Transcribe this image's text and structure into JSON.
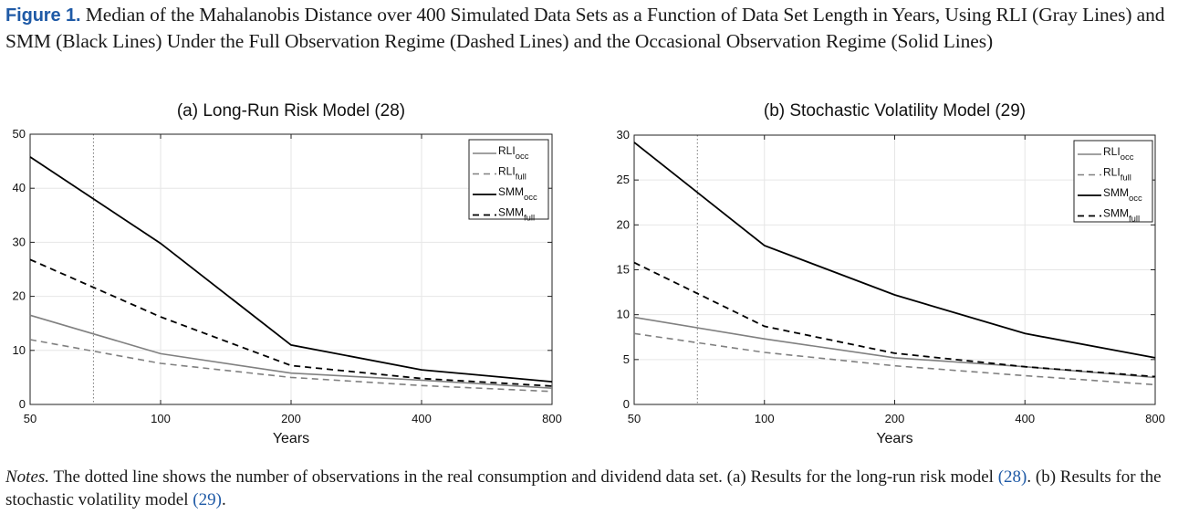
{
  "caption": {
    "label": "Figure 1.",
    "text": "Median of the Mahalanobis Distance over 400 Simulated Data Sets as a Function of Data Set Length in Years, Using RLI (Gray Lines) and SMM (Black Lines) Under the Full Observation Regime (Dashed Lines) and the Occasional Observation Regime (Solid Lines)"
  },
  "notes": {
    "label": "Notes.",
    "text1": " The dotted line shows the number of observations in the real consumption and dividend data set. (a) Results for the long-run risk model ",
    "ref_a": "(28)",
    "text2": ". (b) Results for the stochastic volatility model ",
    "ref_b": "(29)",
    "text3": "."
  },
  "chart_data": [
    {
      "type": "line",
      "title": "(a) Long-Run Risk Model (28)",
      "xlabel": "Years",
      "ylabel": "",
      "x_scale": "log",
      "x": [
        50,
        100,
        200,
        400,
        800
      ],
      "x_ticks": [
        "50",
        "100",
        "200",
        "400",
        "800"
      ],
      "xlim": [
        50,
        800
      ],
      "ylim": [
        0,
        50
      ],
      "y_ticks": [
        0,
        10,
        20,
        30,
        40,
        50
      ],
      "grid": true,
      "legend": "top-right",
      "reference_line_x": 70,
      "series": [
        {
          "name": "RLI",
          "sub": "occ",
          "color": "#808080",
          "dash": "solid",
          "values": [
            16.5,
            9.4,
            5.8,
            4.5,
            3.0
          ]
        },
        {
          "name": "RLI",
          "sub": "full",
          "color": "#808080",
          "dash": "dashed",
          "values": [
            12.0,
            7.6,
            5.0,
            3.5,
            2.4
          ]
        },
        {
          "name": "SMM",
          "sub": "occ",
          "color": "#000000",
          "dash": "solid",
          "values": [
            45.8,
            29.8,
            11.0,
            6.4,
            4.2
          ]
        },
        {
          "name": "SMM",
          "sub": "full",
          "color": "#000000",
          "dash": "dashed",
          "values": [
            26.8,
            16.2,
            7.2,
            4.8,
            3.4
          ]
        }
      ]
    },
    {
      "type": "line",
      "title": "(b) Stochastic Volatility Model (29)",
      "xlabel": "Years",
      "ylabel": "",
      "x_scale": "log",
      "x": [
        50,
        100,
        200,
        400,
        800
      ],
      "x_ticks": [
        "50",
        "100",
        "200",
        "400",
        "800"
      ],
      "xlim": [
        50,
        800
      ],
      "ylim": [
        0,
        30
      ],
      "y_ticks": [
        0,
        5,
        10,
        15,
        20,
        25,
        30
      ],
      "grid": true,
      "legend": "top-right",
      "reference_line_x": 70,
      "series": [
        {
          "name": "RLI",
          "sub": "occ",
          "color": "#808080",
          "dash": "solid",
          "values": [
            9.7,
            7.3,
            5.2,
            4.2,
            3.0
          ]
        },
        {
          "name": "RLI",
          "sub": "full",
          "color": "#808080",
          "dash": "dashed",
          "values": [
            7.9,
            5.8,
            4.3,
            3.2,
            2.2
          ]
        },
        {
          "name": "SMM",
          "sub": "occ",
          "color": "#000000",
          "dash": "solid",
          "values": [
            29.2,
            17.7,
            12.2,
            7.9,
            5.2
          ]
        },
        {
          "name": "SMM",
          "sub": "full",
          "color": "#000000",
          "dash": "dashed",
          "values": [
            15.8,
            8.7,
            5.7,
            4.2,
            3.1
          ]
        }
      ]
    }
  ]
}
